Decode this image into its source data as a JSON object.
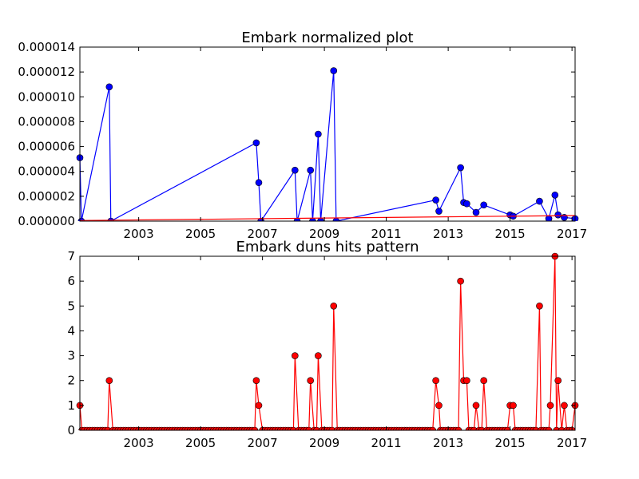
{
  "chart_data": [
    {
      "type": "line",
      "title": "Embark normalized plot",
      "xlabel": "",
      "ylabel": "",
      "xlim": [
        2001.1,
        2017.1
      ],
      "ylim": [
        0,
        1.4e-05
      ],
      "x_ticks": [
        2003,
        2005,
        2007,
        2009,
        2011,
        2013,
        2015,
        2017
      ],
      "x_tick_labels": [
        "2003",
        "2005",
        "2007",
        "2009",
        "2011",
        "2013",
        "2015",
        "2017"
      ],
      "y_ticks": [
        0,
        2e-06,
        4e-06,
        6e-06,
        8e-06,
        1e-05,
        1.2e-05,
        1.4e-05
      ],
      "y_tick_labels": [
        "0.000000",
        "0.000002",
        "0.000004",
        "0.000006",
        "0.000008",
        "0.000010",
        "0.000012",
        "0.000014"
      ],
      "grid": false,
      "series": [
        {
          "color": "#0000ff",
          "marker": "circle",
          "x": [
            2001.1,
            2001.15,
            2002.05,
            2002.1,
            2006.8,
            2006.88,
            2006.95,
            2008.05,
            2008.12,
            2008.55,
            2008.62,
            2008.8,
            2008.88,
            2009.3,
            2009.38,
            2012.6,
            2012.7,
            2013.4,
            2013.5,
            2013.6,
            2013.9,
            2014.15,
            2015.0,
            2015.1,
            2015.95,
            2016.25,
            2016.45,
            2016.55,
            2016.75,
            2017.1
          ],
          "y": [
            5.1e-06,
            0,
            1.08e-05,
            0,
            6.3e-06,
            3.1e-06,
            0,
            4.1e-06,
            0,
            4.1e-06,
            0,
            7e-06,
            0,
            1.21e-05,
            0,
            1.7e-06,
            8e-07,
            4.3e-06,
            1.5e-06,
            1.4e-06,
            7e-07,
            1.3e-06,
            5e-07,
            4e-07,
            1.6e-06,
            2e-07,
            2.1e-06,
            5e-07,
            3e-07,
            2e-07
          ]
        },
        {
          "color": "#ff0000",
          "marker": "none",
          "x": [
            2001.1,
            2017.1
          ],
          "y": [
            5e-08,
            4.5e-07
          ]
        }
      ]
    },
    {
      "type": "line",
      "title": "Embark duns hits pattern",
      "xlabel": "",
      "ylabel": "",
      "xlim": [
        2001.1,
        2017.1
      ],
      "ylim": [
        0,
        7
      ],
      "x_ticks": [
        2003,
        2005,
        2007,
        2009,
        2011,
        2013,
        2015,
        2017
      ],
      "x_tick_labels": [
        "2003",
        "2005",
        "2007",
        "2009",
        "2011",
        "2013",
        "2015",
        "2017"
      ],
      "y_ticks": [
        0,
        1,
        2,
        3,
        4,
        5,
        6,
        7
      ],
      "y_tick_labels": [
        "0",
        "1",
        "2",
        "3",
        "4",
        "5",
        "6",
        "7"
      ],
      "grid": false,
      "series": [
        {
          "color": "#ff0000",
          "marker": "circle",
          "monthly_zero_baseline": true,
          "x": [
            2001.1,
            2002.05,
            2006.8,
            2006.88,
            2008.05,
            2008.55,
            2008.8,
            2009.3,
            2012.6,
            2012.7,
            2013.4,
            2013.5,
            2013.6,
            2013.9,
            2014.15,
            2015.0,
            2015.1,
            2015.95,
            2016.3,
            2016.45,
            2016.55,
            2016.75,
            2017.1
          ],
          "y": [
            1,
            2,
            2,
            1,
            3,
            2,
            3,
            5,
            2,
            1,
            6,
            2,
            2,
            1,
            2,
            1,
            1,
            5,
            1,
            7,
            2,
            1,
            1
          ]
        }
      ]
    }
  ]
}
